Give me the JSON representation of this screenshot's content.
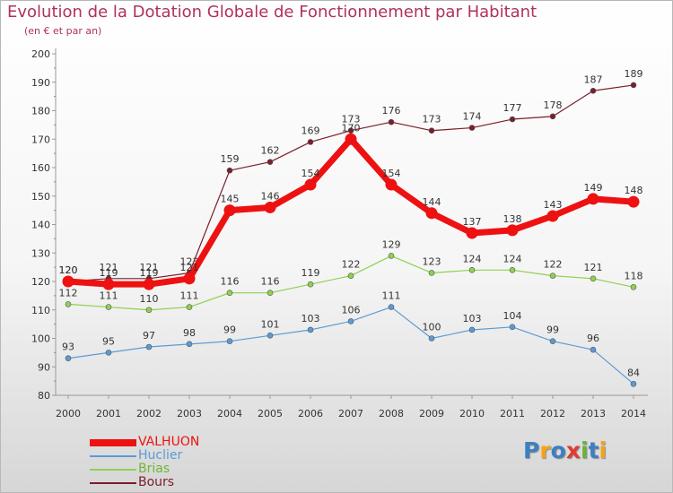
{
  "title": "Evolution de la Dotation Globale de Fonctionnement par Habitant",
  "subtitle": "(en € et par an)",
  "logo": {
    "letters": [
      "P",
      "r",
      "o",
      "x",
      "i",
      "t",
      "i"
    ],
    "colors": [
      "#3d7fc1",
      "#f3a31a",
      "#3d7fc1",
      "#e03c31",
      "#6bb23a",
      "#3d7fc1",
      "#f3a31a"
    ]
  },
  "chart_data": {
    "type": "line",
    "title": "Evolution de la Dotation Globale de Fonctionnement par Habitant",
    "ylabel": "(en € et par an)",
    "xlabel": "",
    "x": [
      "2000",
      "2001",
      "2002",
      "2003",
      "2004",
      "2005",
      "2006",
      "2007",
      "2008",
      "2009",
      "2010",
      "2011",
      "2012",
      "2013",
      "2014"
    ],
    "ylim": [
      80,
      200
    ],
    "yticks": [
      80,
      90,
      100,
      110,
      120,
      130,
      140,
      150,
      160,
      170,
      180,
      190,
      200
    ],
    "grid": false,
    "legend_position": "bottom-left",
    "series": [
      {
        "name": "Bours",
        "color": "#7a1e2a",
        "values": [
          120,
          121,
          121,
          123,
          159,
          162,
          169,
          173,
          176,
          173,
          174,
          177,
          178,
          187,
          189
        ]
      },
      {
        "name": "Brias",
        "color": "#8fd14f",
        "values": [
          112,
          111,
          110,
          111,
          116,
          116,
          119,
          122,
          129,
          123,
          124,
          124,
          122,
          121,
          118
        ]
      },
      {
        "name": "Huclier",
        "color": "#5b9bd5",
        "values": [
          93,
          95,
          97,
          98,
          99,
          101,
          103,
          106,
          111,
          100,
          103,
          104,
          99,
          96,
          84
        ]
      },
      {
        "name": "VALHUON",
        "color": "#ee1111",
        "values": [
          120,
          119,
          119,
          121,
          145,
          146,
          154,
          170,
          154,
          144,
          137,
          138,
          143,
          149,
          148
        ]
      }
    ],
    "legend_order": [
      "VALHUON",
      "Huclier",
      "Brias",
      "Bours"
    ]
  }
}
